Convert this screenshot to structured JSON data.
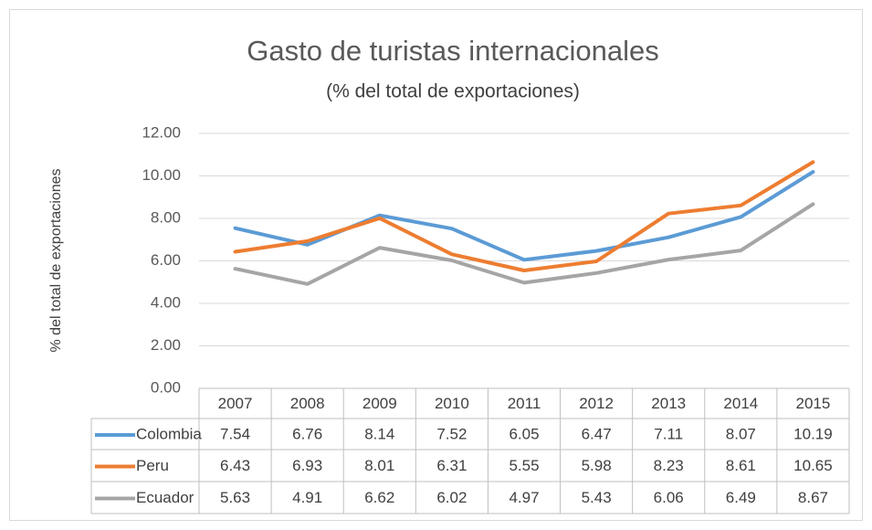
{
  "chart_data": {
    "type": "line",
    "title": "Gasto de turistas internacionales",
    "subtitle": "(% del total de exportaciones)",
    "y_label": "% del total de exportaciones",
    "categories": [
      "2007",
      "2008",
      "2009",
      "2010",
      "2011",
      "2012",
      "2013",
      "2014",
      "2015"
    ],
    "series": [
      {
        "name": "Colombia",
        "color": "#5b9bd5",
        "values": [
          7.54,
          6.76,
          8.14,
          7.52,
          6.05,
          6.47,
          7.11,
          8.07,
          10.19
        ]
      },
      {
        "name": "Peru",
        "color": "#ed7d31",
        "values": [
          6.43,
          6.93,
          8.01,
          6.31,
          5.55,
          5.98,
          8.23,
          8.61,
          10.65
        ]
      },
      {
        "name": "Ecuador",
        "color": "#a5a5a5",
        "values": [
          5.63,
          4.91,
          6.62,
          6.02,
          4.97,
          5.43,
          6.06,
          6.49,
          8.67
        ]
      }
    ],
    "ylim": [
      0,
      12
    ],
    "yticks": [
      {
        "value": 0,
        "label": "0.00"
      },
      {
        "value": 2,
        "label": "2.00"
      },
      {
        "value": 4,
        "label": "4.00"
      },
      {
        "value": 6,
        "label": "6.00"
      },
      {
        "value": 8,
        "label": "8.00"
      },
      {
        "value": 10,
        "label": "10.00"
      },
      {
        "value": 12,
        "label": "12.00"
      }
    ],
    "grid": true
  }
}
